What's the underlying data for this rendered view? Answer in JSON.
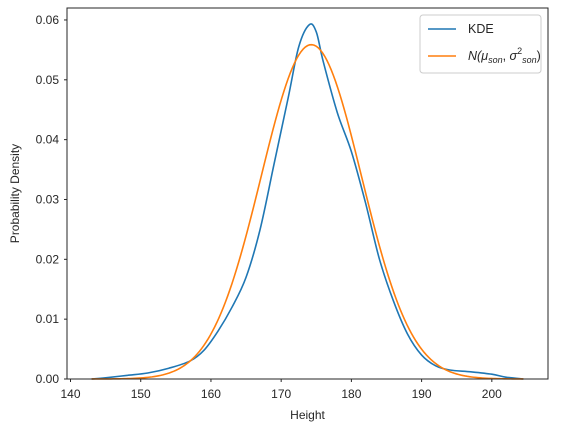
{
  "chart_data": {
    "type": "line",
    "xlabel": "Height",
    "ylabel": "Probability Density",
    "xlim": [
      139.5,
      208
    ],
    "ylim": [
      0,
      0.062
    ],
    "xticks": [
      140,
      150,
      160,
      170,
      180,
      190,
      200
    ],
    "xtick_labels": [
      "140",
      "150",
      "160",
      "170",
      "180",
      "190",
      "200"
    ],
    "yticks": [
      0,
      0.01,
      0.02,
      0.03,
      0.04,
      0.05,
      0.06
    ],
    "ytick_labels": [
      "0.00",
      "0.01",
      "0.02",
      "0.03",
      "0.04",
      "0.05",
      "0.06"
    ],
    "grid": false,
    "legend_position": "top-right",
    "series": [
      {
        "name": "KDE",
        "color": "#1f77b4",
        "points": [
          [
            143,
            0.0
          ],
          [
            145,
            0.0002
          ],
          [
            148,
            0.0006
          ],
          [
            151,
            0.001
          ],
          [
            154,
            0.0018
          ],
          [
            157,
            0.003
          ],
          [
            159,
            0.0048
          ],
          [
            161,
            0.008
          ],
          [
            163,
            0.012
          ],
          [
            165,
            0.017
          ],
          [
            167,
            0.025
          ],
          [
            169,
            0.036
          ],
          [
            171,
            0.047
          ],
          [
            172.5,
            0.0555
          ],
          [
            174,
            0.0592
          ],
          [
            175,
            0.058
          ],
          [
            176,
            0.053
          ],
          [
            178,
            0.0445
          ],
          [
            180,
            0.038
          ],
          [
            182,
            0.0295
          ],
          [
            184,
            0.02
          ],
          [
            186,
            0.013
          ],
          [
            188,
            0.0075
          ],
          [
            190,
            0.004
          ],
          [
            192,
            0.0022
          ],
          [
            194,
            0.0015
          ],
          [
            197,
            0.0012
          ],
          [
            200,
            0.0008
          ],
          [
            202,
            0.0003
          ],
          [
            204.5,
            0.0
          ]
        ]
      },
      {
        "name": "N(μ_son, σ²_son)",
        "label_parts": {
          "prefix": "N(",
          "mu": "μ",
          "mu_sub": "son",
          "sep": ", ",
          "sigma": "σ",
          "sigma_sup": "2",
          "sigma_sub": "son",
          "suffix": ")"
        },
        "color": "#ff7f0e",
        "mean": 174.3,
        "sd": 7.14,
        "x_range": [
          143,
          204.5
        ]
      }
    ]
  }
}
